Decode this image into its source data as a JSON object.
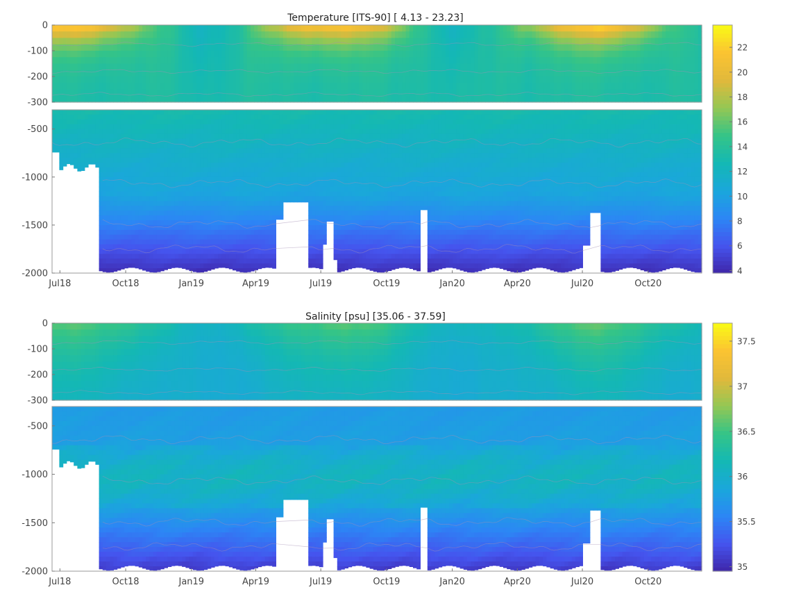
{
  "chart_data": [
    {
      "type": "heatmap",
      "title": "Temperature [ITS-90]   [ 4.13 - 23.23]",
      "variable": "temperature",
      "value_range": [
        4.13,
        23.23
      ],
      "x_tick_labels": [
        "Jul18",
        "Oct18",
        "Jan19",
        "Apr19",
        "Jul19",
        "Oct19",
        "Jan20",
        "Apr20",
        "Jul20",
        "Oct20"
      ],
      "x_range": [
        "2018-06-20",
        "2020-12-15"
      ],
      "upper_panel": {
        "y_range": [
          0,
          -300
        ],
        "y_tick_labels": [
          "0",
          "-100",
          "-200",
          "-300"
        ]
      },
      "lower_panel": {
        "y_range": [
          -300,
          -2000
        ],
        "y_tick_labels": [
          "-500",
          "-1000",
          "-1500",
          "-2000"
        ]
      },
      "colorbar": {
        "range": [
          3.8,
          23.8
        ],
        "tick_labels": [
          "4",
          "6",
          "8",
          "10",
          "12",
          "14",
          "16",
          "18",
          "20",
          "22"
        ]
      },
      "colormap": [
        "#3e26a8",
        "#4554ee",
        "#2c86f5",
        "#1aa7db",
        "#14b8b4",
        "#35c487",
        "#94c754",
        "#e1b93b",
        "#fbc332",
        "#f9fb15"
      ],
      "contour_color": "#a48fb5",
      "grid": false
    },
    {
      "type": "heatmap",
      "title": "Salinity [psu]   [35.06 - 37.59]",
      "variable": "salinity",
      "value_range": [
        35.06,
        37.59
      ],
      "x_tick_labels": [
        "Jul18",
        "Oct18",
        "Jan19",
        "Apr19",
        "Jul19",
        "Oct19",
        "Jan20",
        "Apr20",
        "Jul20",
        "Oct20"
      ],
      "x_range": [
        "2018-06-20",
        "2020-12-15"
      ],
      "upper_panel": {
        "y_range": [
          0,
          -300
        ],
        "y_tick_labels": [
          "0",
          "-100",
          "-200",
          "-300"
        ]
      },
      "lower_panel": {
        "y_range": [
          -300,
          -2000
        ],
        "y_tick_labels": [
          "-500",
          "-1000",
          "-1500",
          "-2000"
        ]
      },
      "colorbar": {
        "range": [
          34.95,
          37.7
        ],
        "tick_labels": [
          "35",
          "35.5",
          "36",
          "36.5",
          "37",
          "37.5"
        ]
      },
      "colormap": [
        "#3e26a8",
        "#4554ee",
        "#2c86f5",
        "#1aa7db",
        "#14b8b4",
        "#35c487",
        "#94c754",
        "#e1b93b",
        "#fbc332",
        "#f9fb15"
      ],
      "contour_color": "#a48fb5",
      "grid": false
    }
  ]
}
